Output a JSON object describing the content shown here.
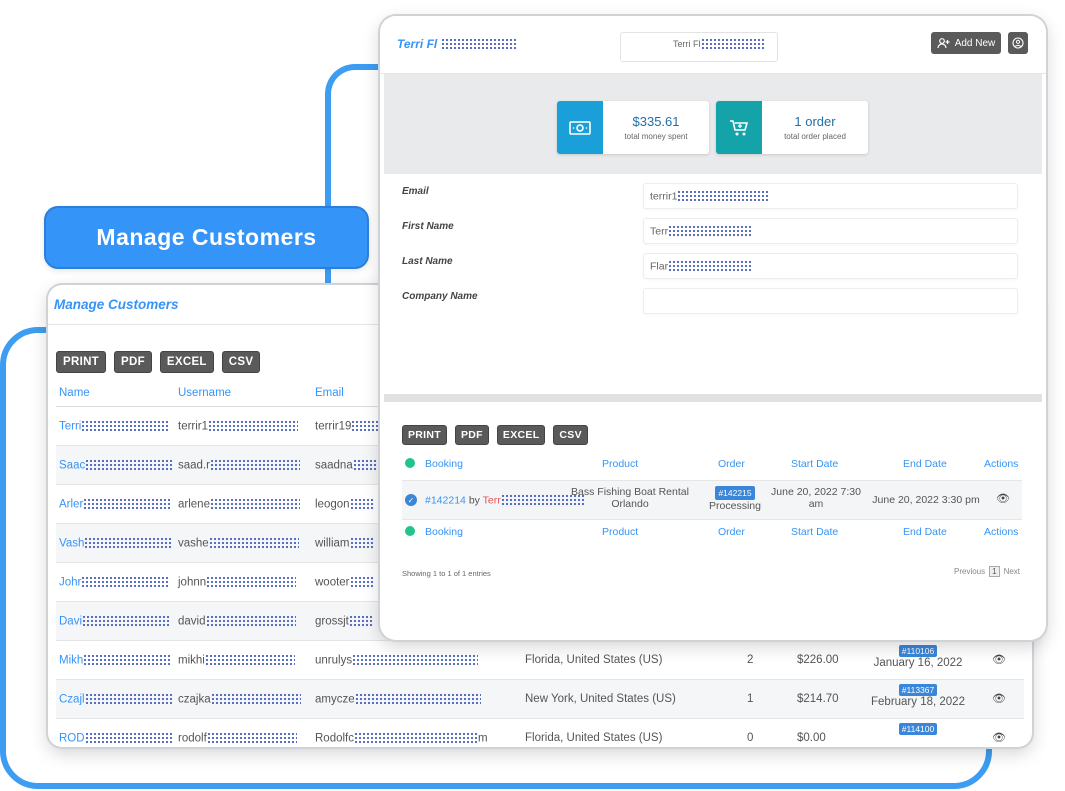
{
  "banner": {
    "label": "Manage Customers"
  },
  "customers": {
    "title": "Manage Customers",
    "export_buttons": [
      "PRINT",
      "PDF",
      "EXCEL",
      "CSV"
    ],
    "columns": {
      "name": "Name",
      "username": "Username",
      "email": "Email"
    },
    "rows": [
      {
        "name": "Terri",
        "username": "terrir1",
        "email": "terrir19"
      },
      {
        "name": "Saac",
        "username": "saad.r",
        "email": "saadna"
      },
      {
        "name": "Arler",
        "username": "arlene",
        "email": "leogon"
      },
      {
        "name": "Vash",
        "username": "vashe",
        "email": "william"
      },
      {
        "name": "Johr",
        "username": "johnn",
        "email": "wooter"
      },
      {
        "name": "Davi",
        "username": "david",
        "email": "grossjt"
      },
      {
        "name": "Mikh",
        "username": "mikhi",
        "email": "unrulys",
        "location": "Florida, United States (US)",
        "orders": "2",
        "spent": "$226.00",
        "last_order": "#110106",
        "last_date": "January 16, 2022"
      },
      {
        "name": "Czajl",
        "username": "czajka",
        "email": "amycze",
        "location": "New York, United States (US)",
        "orders": "1",
        "spent": "$214.70",
        "last_order": "#113367",
        "last_date": "February 18, 2022"
      },
      {
        "name": "ROD",
        "username": "rodolf",
        "email": "Rodolfc",
        "email_tail": "m",
        "location": "Florida, United States (US)",
        "orders": "0",
        "spent": "$0.00",
        "last_order": "#114100",
        "last_date": ""
      }
    ]
  },
  "customer_detail": {
    "header_name": "Terri Fl",
    "search_text": "Terri Fl",
    "add_new_label": "Add New",
    "stats": [
      {
        "value": "$335.61",
        "label": "total money spent",
        "icon": "money-icon",
        "color": "#1b9fd8"
      },
      {
        "value": "1 order",
        "label": "total order placed",
        "icon": "cart-icon",
        "color": "#14a3a8"
      }
    ],
    "fields": [
      {
        "label": "Email",
        "value": "terrir1"
      },
      {
        "label": "First Name",
        "value": "Terr"
      },
      {
        "label": "Last Name",
        "value": "Flar"
      },
      {
        "label": "Company Name",
        "value": ""
      }
    ],
    "export_buttons": [
      "PRINT",
      "PDF",
      "EXCEL",
      "CSV"
    ],
    "bookings_columns": {
      "booking": "Booking",
      "product": "Product",
      "order": "Order",
      "start": "Start Date",
      "end": "End Date",
      "actions": "Actions"
    },
    "booking": {
      "id": "#142214",
      "by": "by",
      "customer": "Terr",
      "product": "Bass Fishing Boat Rental Orlando",
      "order_id": "#142215",
      "order_status": "Processing",
      "start_date": "June 20, 2022 7:30 am",
      "end_date": "June 20, 2022 3:30 pm"
    },
    "info": "Showing 1 to 1 of 1 entries",
    "pager": {
      "previous": "Previous",
      "page": "1",
      "next": "Next"
    }
  }
}
